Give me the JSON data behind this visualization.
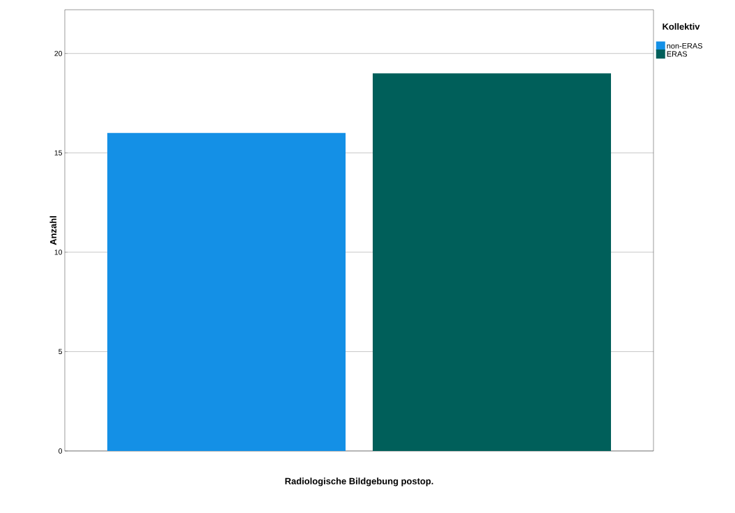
{
  "chart_data": {
    "type": "bar",
    "xlabel": "Radiologische Bildgebung postop.",
    "ylabel": "Anzahl",
    "legend_title": "Kollektiv",
    "categories": [
      null
    ],
    "series": [
      {
        "name": "non-ERAS",
        "color": "#1490e6",
        "values": [
          16
        ]
      },
      {
        "name": "ERAS",
        "color": "#005f5a",
        "values": [
          19
        ]
      }
    ],
    "ylim": [
      0,
      22.2
    ],
    "yticks": [
      0,
      5,
      10,
      15,
      20
    ],
    "grid": "y",
    "legend": "right"
  }
}
